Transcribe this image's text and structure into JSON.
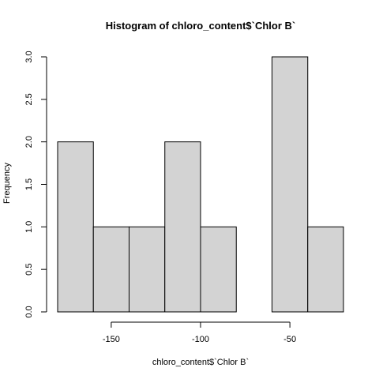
{
  "chart_data": {
    "type": "bar",
    "title": "Histogram of chloro_content$`Chlor B`",
    "xlabel": "chloro_content$`Chlor B`",
    "ylabel": "Frequency",
    "bins": [
      {
        "start": -180,
        "end": -160,
        "count": 2
      },
      {
        "start": -160,
        "end": -140,
        "count": 1
      },
      {
        "start": -140,
        "end": -120,
        "count": 1
      },
      {
        "start": -120,
        "end": -100,
        "count": 2
      },
      {
        "start": -100,
        "end": -80,
        "count": 1
      },
      {
        "start": -80,
        "end": -60,
        "count": 0
      },
      {
        "start": -60,
        "end": -40,
        "count": 3
      },
      {
        "start": -40,
        "end": -20,
        "count": 1
      }
    ],
    "xticks": [
      -150,
      -100,
      -50
    ],
    "xtick_labels": [
      "-150",
      "-100",
      "-50"
    ],
    "yticks": [
      0,
      0.5,
      1,
      1.5,
      2,
      2.5,
      3
    ],
    "ytick_labels": [
      "0.0",
      "0.5",
      "1.0",
      "1.5",
      "2.0",
      "2.5",
      "3.0"
    ],
    "xlim": [
      -180,
      -20
    ],
    "ylim": [
      0,
      3
    ],
    "bar_fill": "#d3d3d3",
    "grid": false
  }
}
